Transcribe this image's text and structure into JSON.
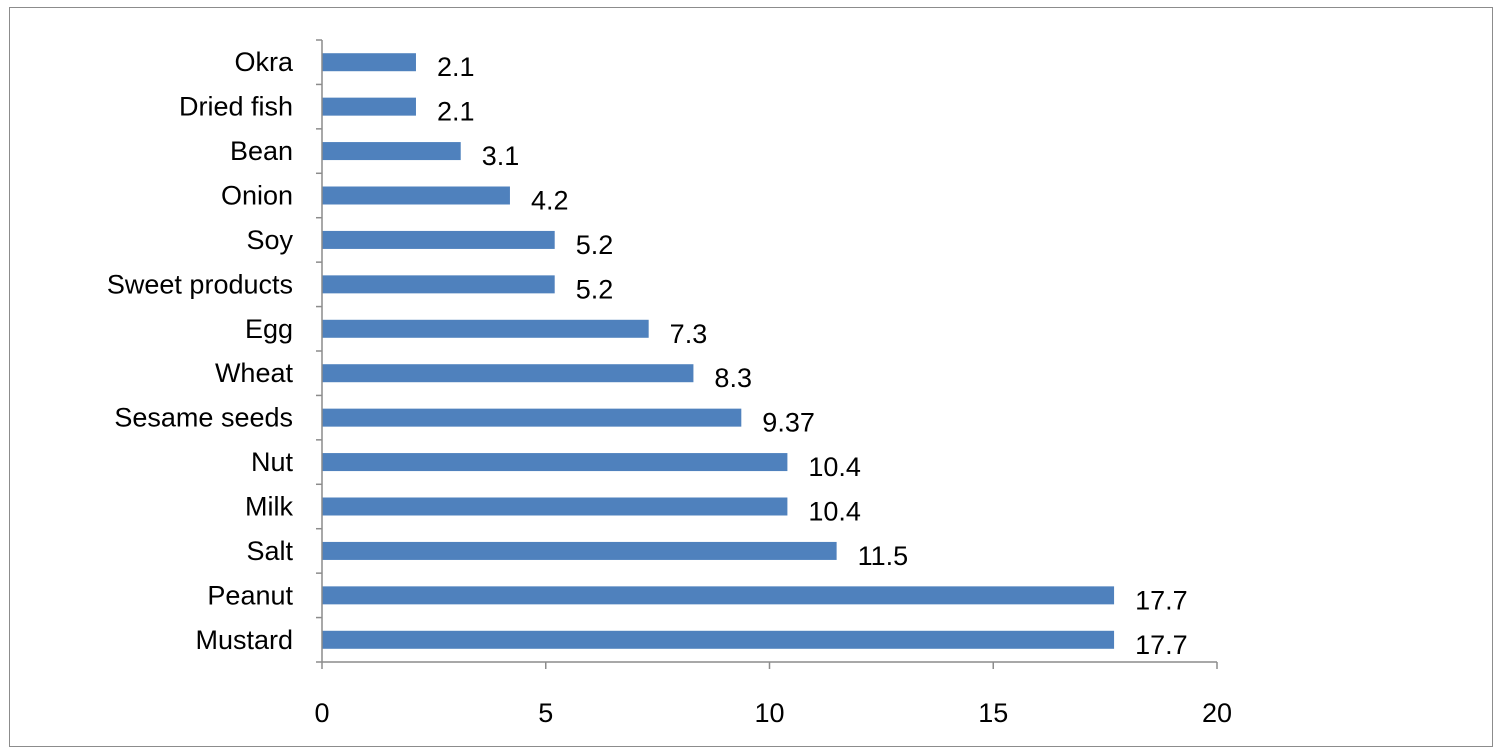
{
  "chart_data": {
    "type": "bar",
    "orientation": "horizontal",
    "categories": [
      "Okra",
      "Dried fish",
      "Bean",
      "Onion",
      "Soy",
      "Sweet products",
      "Egg",
      "Wheat",
      "Sesame seeds",
      "Nut",
      "Milk",
      "Salt",
      "Peanut",
      "Mustard"
    ],
    "values": [
      2.1,
      2.1,
      3.1,
      4.2,
      5.2,
      5.2,
      7.3,
      8.3,
      9.37,
      10.4,
      10.4,
      11.5,
      17.7,
      17.7
    ],
    "value_labels": [
      "2.1",
      "2.1",
      "3.1",
      "4.2",
      "5.2",
      "5.2",
      "7.3",
      "8.3",
      "9.37",
      "10.4",
      "10.4",
      "11.5",
      "17.7",
      "17.7"
    ],
    "xlim": [
      0,
      20
    ],
    "x_ticks": [
      0,
      5,
      10,
      15,
      20
    ],
    "title": "",
    "xlabel": "",
    "ylabel": "",
    "grid": false,
    "legend": "none",
    "colors": {
      "bar": "#4f81bd",
      "axis": "#8c8c8c",
      "text": "#000000"
    }
  }
}
